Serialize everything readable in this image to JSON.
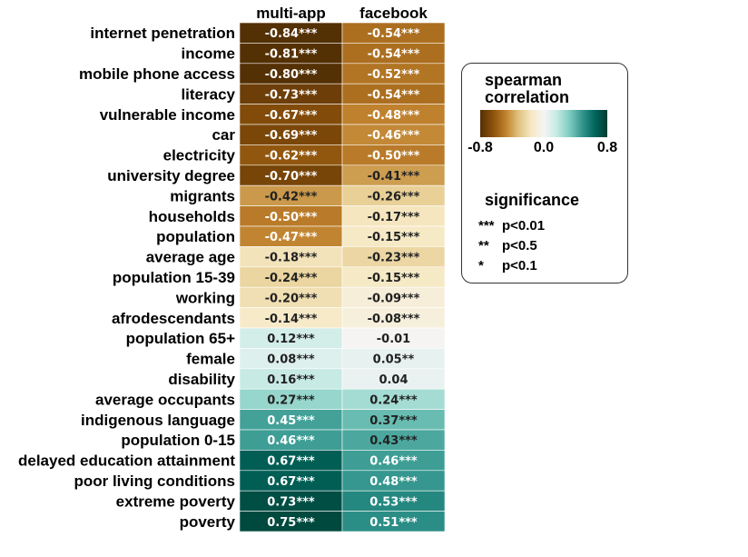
{
  "chart_data": {
    "type": "heatmap",
    "columns": [
      "multi-app",
      "facebook"
    ],
    "rows": [
      {
        "label": "internet penetration",
        "values": [
          -0.84,
          -0.54
        ],
        "annotations": [
          "-0.84***",
          "-0.54***"
        ]
      },
      {
        "label": "income",
        "values": [
          -0.81,
          -0.54
        ],
        "annotations": [
          "-0.81***",
          "-0.54***"
        ]
      },
      {
        "label": "mobile phone access",
        "values": [
          -0.8,
          -0.52
        ],
        "annotations": [
          "-0.80***",
          "-0.52***"
        ]
      },
      {
        "label": "literacy",
        "values": [
          -0.73,
          -0.54
        ],
        "annotations": [
          "-0.73***",
          "-0.54***"
        ]
      },
      {
        "label": "vulnerable income",
        "values": [
          -0.67,
          -0.48
        ],
        "annotations": [
          "-0.67***",
          "-0.48***"
        ]
      },
      {
        "label": "car",
        "values": [
          -0.69,
          -0.46
        ],
        "annotations": [
          "-0.69***",
          "-0.46***"
        ]
      },
      {
        "label": "electricity",
        "values": [
          -0.62,
          -0.5
        ],
        "annotations": [
          "-0.62***",
          "-0.50***"
        ]
      },
      {
        "label": "university degree",
        "values": [
          -0.7,
          -0.41
        ],
        "annotations": [
          "-0.70***",
          "-0.41***"
        ]
      },
      {
        "label": "migrants",
        "values": [
          -0.42,
          -0.26
        ],
        "annotations": [
          "-0.42***",
          "-0.26***"
        ]
      },
      {
        "label": "households",
        "values": [
          -0.5,
          -0.17
        ],
        "annotations": [
          "-0.50***",
          "-0.17***"
        ]
      },
      {
        "label": "population",
        "values": [
          -0.47,
          -0.15
        ],
        "annotations": [
          "-0.47***",
          "-0.15***"
        ]
      },
      {
        "label": "average age",
        "values": [
          -0.18,
          -0.23
        ],
        "annotations": [
          "-0.18***",
          "-0.23***"
        ]
      },
      {
        "label": "population 15-39",
        "values": [
          -0.24,
          -0.15
        ],
        "annotations": [
          "-0.24***",
          "-0.15***"
        ]
      },
      {
        "label": "working",
        "values": [
          -0.2,
          -0.09
        ],
        "annotations": [
          "-0.20***",
          "-0.09***"
        ]
      },
      {
        "label": "afrodescendants",
        "values": [
          -0.14,
          -0.08
        ],
        "annotations": [
          "-0.14***",
          "-0.08***"
        ]
      },
      {
        "label": "population 65+",
        "values": [
          0.12,
          -0.01
        ],
        "annotations": [
          "0.12***",
          "-0.01"
        ]
      },
      {
        "label": "female",
        "values": [
          0.08,
          0.05
        ],
        "annotations": [
          "0.08***",
          "0.05**"
        ]
      },
      {
        "label": "disability",
        "values": [
          0.16,
          0.04
        ],
        "annotations": [
          "0.16***",
          "0.04"
        ]
      },
      {
        "label": "average occupants",
        "values": [
          0.27,
          0.24
        ],
        "annotations": [
          "0.27***",
          "0.24***"
        ]
      },
      {
        "label": "indigenous language",
        "values": [
          0.45,
          0.37
        ],
        "annotations": [
          "0.45***",
          "0.37***"
        ]
      },
      {
        "label": "population 0-15",
        "values": [
          0.46,
          0.43
        ],
        "annotations": [
          "0.46***",
          "0.43***"
        ]
      },
      {
        "label": "delayed education attainment",
        "values": [
          0.67,
          0.46
        ],
        "annotations": [
          "0.67***",
          "0.46***"
        ]
      },
      {
        "label": "poor living conditions",
        "values": [
          0.67,
          0.48
        ],
        "annotations": [
          "0.67***",
          "0.48***"
        ]
      },
      {
        "label": "extreme poverty",
        "values": [
          0.73,
          0.53
        ],
        "annotations": [
          "0.73***",
          "0.53***"
        ]
      },
      {
        "label": "poverty",
        "values": [
          0.75,
          0.51
        ],
        "annotations": [
          "0.75***",
          "0.51***"
        ]
      }
    ],
    "color_scale": {
      "range": [
        -0.8,
        0.8
      ],
      "ticks": [
        "-0.8",
        "0.0",
        "0.8"
      ],
      "colors": [
        "#543005",
        "#8c510a",
        "#bf812d",
        "#dfc27d",
        "#f6e8c3",
        "#f5f5f5",
        "#c7eae5",
        "#80cdc1",
        "#35978f",
        "#01665e",
        "#003c30"
      ]
    },
    "legend": {
      "position": "right",
      "title_line1": "spearman",
      "title_line2": "correlation",
      "significance_title": "significance",
      "significance": [
        {
          "stars": "***",
          "label": "p<0.01"
        },
        {
          "stars": "**",
          "label": "p<0.5"
        },
        {
          "stars": "*",
          "label": "p<0.1"
        }
      ]
    }
  }
}
